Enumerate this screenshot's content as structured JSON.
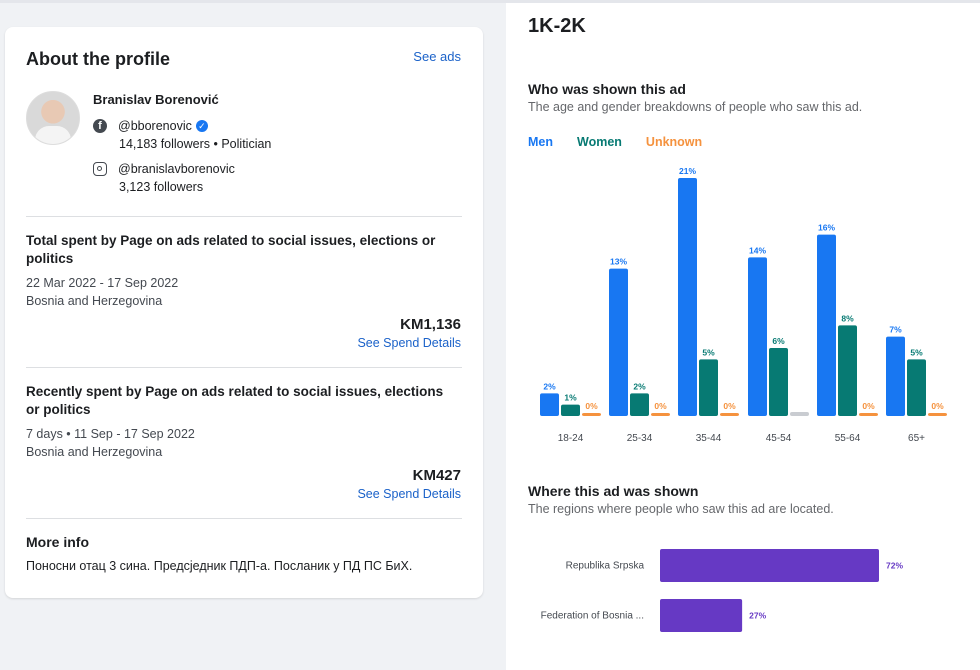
{
  "profile": {
    "card_title": "About the profile",
    "see_ads": "See ads",
    "name": "Branislav Borenović",
    "facebook": {
      "handle": "@bborenovic",
      "followers": "14,183 followers • Politician",
      "verified_icon": "verified-badge-icon"
    },
    "instagram": {
      "handle": "@branislavborenovic",
      "followers": "3,123 followers"
    }
  },
  "total": {
    "title": "Total spent by Page on ads related to social issues, elections or politics",
    "dates": "22 Mar 2022 - 17 Sep 2022",
    "region": "Bosnia and Herzegovina",
    "amount": "KM1,136",
    "link": "See Spend Details"
  },
  "recent": {
    "title": "Recently spent by Page on ads related to social issues, elections or politics",
    "dates": "7 days • 11 Sep - 17 Sep 2022",
    "region": "Bosnia and Herzegovina",
    "amount": "KM427",
    "link": "See Spend Details"
  },
  "more_info": {
    "title": "More info",
    "text": "Поносни отац 3 сина. Предсједник ПДП-а. Посланик у ПД ПС БиХ."
  },
  "reach": "1K-2K",
  "shown": {
    "title": "Who was shown this ad",
    "subtitle": "The age and gender breakdowns of people who saw this ad.",
    "legend": {
      "men": "Men",
      "women": "Women",
      "unknown": "Unknown"
    }
  },
  "where": {
    "title": "Where this ad was shown",
    "subtitle": "The regions where people who saw this ad are located."
  },
  "colors": {
    "men": "#1877f2",
    "women": "#077a73",
    "unknown": "#f5923e",
    "unknown_bar": "#c9ccd1",
    "region": "#6639c4",
    "link": "#1b62c9"
  },
  "chart_data": [
    {
      "type": "bar",
      "categories": [
        "18-24",
        "25-34",
        "35-44",
        "45-54",
        "55-64",
        "65+"
      ],
      "series": [
        {
          "name": "Men",
          "values": [
            2,
            13,
            21,
            14,
            16,
            7
          ],
          "labels": [
            "2%",
            "13%",
            "21%",
            "14%",
            "16%",
            "7%"
          ]
        },
        {
          "name": "Women",
          "values": [
            1,
            2,
            5,
            6,
            8,
            5
          ],
          "labels": [
            "1%",
            "2%",
            "5%",
            "6%",
            "8%",
            "5%"
          ]
        },
        {
          "name": "Unknown",
          "values": [
            0,
            0,
            0,
            0,
            0,
            0
          ],
          "labels": [
            "0%",
            "0%",
            "0%",
            "",
            "0%",
            "0%"
          ]
        }
      ],
      "ylim": [
        0,
        21
      ],
      "legend": "top-left"
    },
    {
      "type": "bar",
      "orientation": "horizontal",
      "categories": [
        "Republika Srpska",
        "Federation of Bosnia ..."
      ],
      "values": [
        72,
        27
      ],
      "labels": [
        "72%",
        "27%"
      ],
      "xlim": [
        0,
        72
      ]
    }
  ]
}
